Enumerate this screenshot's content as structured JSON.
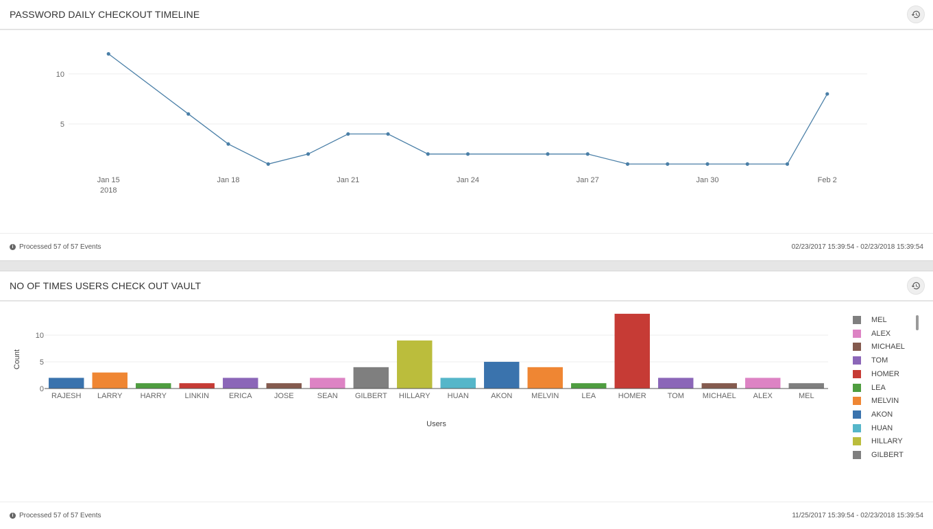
{
  "panel1": {
    "title": "PASSWORD DAILY CHECKOUT TIMELINE",
    "history_icon": "history-icon",
    "footer_status": "Processed 57 of 57 Events",
    "footer_range": "02/23/2017 15:39:54 - 02/23/2018 15:39:54"
  },
  "panel2": {
    "title": "NO OF TIMES USERS CHECK OUT VAULT",
    "history_icon": "history-icon",
    "footer_status": "Processed 57 of 57 Events",
    "footer_range": "11/25/2017 15:39:54 - 02/23/2018 15:39:54"
  },
  "chart_data": [
    {
      "type": "line",
      "title": "PASSWORD DAILY CHECKOUT TIMELINE",
      "x": [
        "2018-01-15",
        "2018-01-17",
        "2018-01-18",
        "2018-01-19",
        "2018-01-20",
        "2018-01-21",
        "2018-01-22",
        "2018-01-23",
        "2018-01-24",
        "2018-01-26",
        "2018-01-27",
        "2018-01-28",
        "2018-01-29",
        "2018-01-30",
        "2018-01-31",
        "2018-02-01",
        "2018-02-02"
      ],
      "series": [
        {
          "values": [
            12,
            6,
            3,
            1,
            2,
            4,
            4,
            2,
            2,
            2,
            2,
            1,
            1,
            1,
            1,
            1,
            8
          ],
          "color": "#4a7fa7"
        }
      ],
      "x_tick_labels": [
        {
          "date": "2018-01-15",
          "label": "Jan 15",
          "sublabel": "2018"
        },
        {
          "date": "2018-01-18",
          "label": "Jan 18"
        },
        {
          "date": "2018-01-21",
          "label": "Jan 21"
        },
        {
          "date": "2018-01-24",
          "label": "Jan 24"
        },
        {
          "date": "2018-01-27",
          "label": "Jan 27"
        },
        {
          "date": "2018-01-30",
          "label": "Jan 30"
        },
        {
          "date": "2018-02-02",
          "label": "Feb 2"
        }
      ],
      "y_ticks": [
        5,
        10
      ],
      "ylim": [
        0,
        13
      ],
      "xlim": [
        "2018-01-14",
        "2018-02-03"
      ],
      "xlabel": "",
      "ylabel": "",
      "grid": true
    },
    {
      "type": "bar",
      "title": "NO OF TIMES USERS CHECK OUT VAULT",
      "categories": [
        "RAJESH",
        "LARRY",
        "HARRY",
        "LINKIN",
        "ERICA",
        "JOSE",
        "SEAN",
        "GILBERT",
        "HILLARY",
        "HUAN",
        "AKON",
        "MELVIN",
        "LEA",
        "HOMER",
        "TOM",
        "MICHAEL",
        "ALEX",
        "MEL"
      ],
      "values": [
        2,
        3,
        1,
        1,
        2,
        1,
        2,
        4,
        9,
        2,
        5,
        4,
        1,
        14,
        2,
        1,
        2,
        1
      ],
      "colors": [
        "#3a73ad",
        "#ef8633",
        "#4e9d3f",
        "#c63b35",
        "#8b66b8",
        "#845a4e",
        "#dd83c4",
        "#7f7f7f",
        "#bbbd3c",
        "#55b6c9",
        "#3a73ad",
        "#ef8633",
        "#4e9d3f",
        "#c63b35",
        "#8b66b8",
        "#845a4e",
        "#dd83c4",
        "#7f7f7f"
      ],
      "xlabel": "Users",
      "ylabel": "Count",
      "y_ticks": [
        0,
        5,
        10
      ],
      "ylim": [
        0,
        14.5
      ],
      "grid": true,
      "legend_position": "right",
      "legend": [
        {
          "name": "MEL",
          "color": "#7f7f7f"
        },
        {
          "name": "ALEX",
          "color": "#dd83c4"
        },
        {
          "name": "MICHAEL",
          "color": "#845a4e"
        },
        {
          "name": "TOM",
          "color": "#8b66b8"
        },
        {
          "name": "HOMER",
          "color": "#c63b35"
        },
        {
          "name": "LEA",
          "color": "#4e9d3f"
        },
        {
          "name": "MELVIN",
          "color": "#ef8633"
        },
        {
          "name": "AKON",
          "color": "#3a73ad"
        },
        {
          "name": "HUAN",
          "color": "#55b6c9"
        },
        {
          "name": "HILLARY",
          "color": "#bbbd3c"
        },
        {
          "name": "GILBERT",
          "color": "#7f7f7f"
        }
      ]
    }
  ]
}
